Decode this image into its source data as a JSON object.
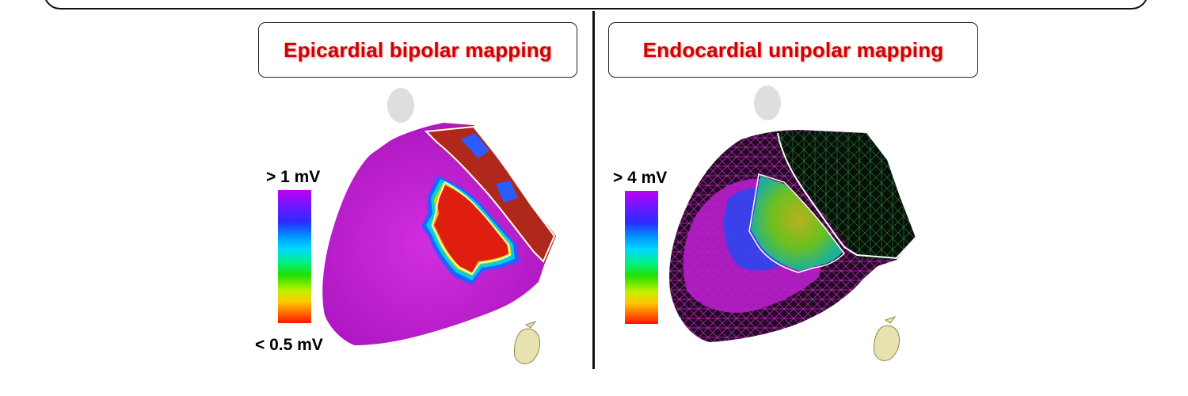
{
  "panels": {
    "left": {
      "title": "Epicardial bipolar mapping",
      "scale_max": "> 1 mV",
      "scale_min": "< 0.5  mV"
    },
    "right": {
      "title": "Endocardial unipolar mapping",
      "scale_max": "> 4 mV"
    }
  },
  "colors": {
    "title_text": "#d40000",
    "healthy_tissue": "#c41ed6",
    "scar_core": "#e01e10",
    "endocardial_mesh": "#c02cc0",
    "border_zone": "#22d000"
  },
  "icons": [
    "head-silhouette-icon",
    "heart-orientation-icon"
  ]
}
